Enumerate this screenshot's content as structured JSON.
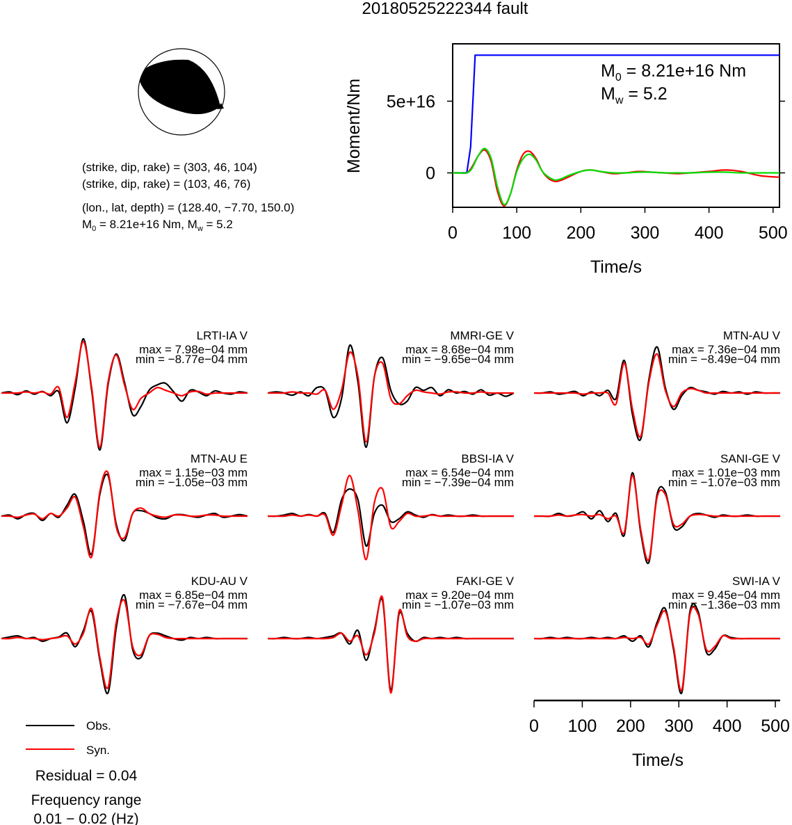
{
  "title": "20180525222344 fault",
  "mechanism": {
    "plane1": "(strike, dip, rake) = (303, 46, 104)",
    "plane2": "(strike, dip, rake) = (103, 46, 76)",
    "location": "(lon., lat, depth) = (128.40, −7.70, 150.0)",
    "moment_prefix": "M",
    "moment_sub": "0",
    "moment_value": " = 8.21e+16 Nm, M",
    "mw_sub": "w",
    "mw_value": " = 5.2"
  },
  "legend": {
    "obs": "Obs.",
    "syn": "Syn."
  },
  "residual": "Residual = 0.04",
  "frequency_label": "Frequency range",
  "frequency_value": "0.01 − 0.02 (Hz)",
  "chart_data": [
    {
      "type": "line",
      "name": "moment-rate",
      "xlabel": "Time/s",
      "ylabel": "Moment/Nm",
      "xlim": [
        0,
        510
      ],
      "ylim": [
        -2.4e+16,
        9e+16
      ],
      "x_ticks": [
        0,
        100,
        200,
        300,
        400,
        500
      ],
      "y_ticks": [
        {
          "v": 0,
          "label": "0"
        },
        {
          "v": 5e+16,
          "label": "5e+16"
        }
      ],
      "annotation": {
        "m0_pre": "M",
        "m0_sub": "0",
        "m0_val": " = 8.21e+16 Nm",
        "mw_pre": "M",
        "mw_sub": "w",
        "mw_val": " = 5.2"
      },
      "series": [
        {
          "color": "#0000ff",
          "x": [
            0,
            22,
            28,
            32,
            35,
            38,
            510
          ],
          "y": [
            0,
            0,
            1.8e+16,
            5.4e+16,
            8.21e+16,
            8.21e+16,
            8.21e+16
          ]
        },
        {
          "color": "#ff0000",
          "x": [
            0,
            10,
            22,
            30,
            40,
            50,
            60,
            70,
            80,
            90,
            100,
            110,
            120,
            130,
            140,
            150,
            160,
            170,
            180,
            200,
            215,
            230,
            250,
            270,
            290,
            310,
            330,
            350,
            370,
            400,
            425,
            450,
            480,
            510
          ],
          "y": [
            0,
            0,
            0,
            4000000000000000.0,
            1.2e+16,
            1.6e+16,
            8000000000000000.0,
            -1.3e+16,
            -2.3e+16,
            -1.5e+16,
            2000000000000000.0,
            1.3e+16,
            1.5e+16,
            1e+16,
            1000000000000000.0,
            -4000000000000000.0,
            -6000000000000000.0,
            -5000000000000000.0,
            -3000000000000000.0,
            1000000000000000.0,
            2000000000000000.0,
            1000000000000000.0,
            -500000000000000.0,
            0,
            1000000000000000.0,
            500000000000000.0,
            0,
            -500000000000000.0,
            0,
            1000000000000000.0,
            2000000000000000.0,
            1000000000000000.0,
            -2000000000000000.0,
            -3000000000000000.0
          ]
        },
        {
          "color": "#00dd00",
          "x": [
            0,
            10,
            22,
            30,
            40,
            50,
            60,
            70,
            80,
            90,
            100,
            110,
            120,
            130,
            140,
            150,
            160,
            170,
            180,
            200,
            215,
            230,
            250,
            270,
            290,
            310,
            330,
            350,
            370,
            400,
            425,
            450,
            480,
            510
          ],
          "y": [
            0,
            0,
            0,
            3000000000000000.0,
            1.2e+16,
            1.7e+16,
            1e+16,
            -1e+16,
            -2.2e+16,
            -1.5e+16,
            1000000000000000.0,
            1e+16,
            1.3e+16,
            9000000000000000.0,
            1000000000000000.0,
            -3000000000000000.0,
            -5000000000000000.0,
            -4000000000000000.0,
            -2000000000000000.0,
            1000000000000000.0,
            2000000000000000.0,
            1000000000000000.0,
            0,
            0,
            500000000000000.0,
            500000000000000.0,
            0,
            0,
            0,
            500000000000000.0,
            500000000000000.0,
            0,
            0,
            0
          ]
        }
      ]
    },
    {
      "type": "line",
      "name": "waveforms",
      "xlabel": "Time/s",
      "xlim": [
        0,
        510
      ],
      "x_ticks": [
        0,
        100,
        200,
        300,
        400,
        500
      ],
      "legend": [
        "Obs.",
        "Syn."
      ],
      "colors": {
        "obs": "#000000",
        "syn": "#ff0000"
      },
      "series": [
        {
          "station": "LRTI-IA V",
          "max": "max = 7.98e−04 mm",
          "min": "min = −8.77e−04 mm",
          "obs": [
            0,
            0.02,
            -0.03,
            0.04,
            -0.02,
            0.03,
            -0.05,
            0.02,
            -0.55,
            0.1,
            1.0,
            0.05,
            -1.05,
            0.15,
            0.72,
            0.2,
            -0.4,
            -0.25,
            0.05,
            0.15,
            0.18,
            0.02,
            -0.15,
            0.05,
            0.02,
            -0.05,
            0.04,
            0,
            -0.02,
            0.02,
            0
          ],
          "syn": [
            0,
            0,
            0,
            0.02,
            0,
            0.02,
            -0.02,
            0.1,
            -0.45,
            0.2,
            0.95,
            0.1,
            -1.0,
            0.2,
            0.7,
            0.15,
            -0.3,
            -0.1,
            0,
            0.1,
            0.05,
            0,
            -0.05,
            0.02,
            0.03,
            -0.02,
            0,
            0,
            0,
            0,
            0
          ]
        },
        {
          "station": "MMRI-GE V",
          "max": "max = 8.68e−04 mm",
          "min": "min = −9.65e−04 mm",
          "obs": [
            0,
            0.02,
            0,
            -0.04,
            0.02,
            -0.05,
            0.1,
            0.05,
            -0.45,
            -0.1,
            0.88,
            0.2,
            -1.0,
            0.3,
            0.65,
            0.05,
            -0.2,
            -0.15,
            0.1,
            0.05,
            0.1,
            -0.05,
            0.06,
            0,
            0.03,
            -0.02,
            0.06,
            -0.04,
            0,
            -0.06,
            0
          ],
          "syn": [
            0,
            0,
            0,
            0.02,
            0,
            0,
            -0.02,
            0.05,
            -0.3,
            0.05,
            0.75,
            0.3,
            -0.9,
            0.3,
            0.55,
            -0.1,
            -0.2,
            -0.05,
            0.05,
            0.02,
            0,
            -0.02,
            0.02,
            0.02,
            0,
            0,
            0.02,
            0,
            0,
            0,
            0
          ]
        },
        {
          "station": "MTN-AU V",
          "max": "max = 7.36e−04 mm",
          "min": "min = −8.49e−04 mm",
          "obs": [
            0,
            0,
            0.02,
            -0.02,
            0,
            0.03,
            -0.05,
            0.02,
            -0.05,
            0.05,
            -0.1,
            0.6,
            -0.4,
            -0.85,
            0.25,
            0.85,
            0.1,
            -0.3,
            -0.05,
            0.1,
            0.05,
            0.02,
            -0.02,
            0.03,
            0,
            0.02,
            -0.02,
            0.02,
            0,
            0,
            0
          ],
          "syn": [
            0,
            0,
            0,
            0,
            0,
            0,
            -0.02,
            0,
            0,
            0,
            -0.2,
            0.55,
            -0.3,
            -0.8,
            0.2,
            0.72,
            0.05,
            -0.25,
            0,
            0.08,
            0.05,
            0,
            0,
            0,
            0,
            0,
            0,
            0,
            0,
            0,
            0
          ]
        },
        {
          "station": "MTN-AU E",
          "max": "max = 1.15e−03 mm",
          "min": "min = −1.05e−03 mm",
          "obs": [
            0,
            0.02,
            -0.05,
            0.03,
            0.05,
            -0.08,
            0.05,
            -0.02,
            0.2,
            0.4,
            -0.1,
            -0.7,
            0.4,
            0.75,
            -0.15,
            -0.45,
            0.05,
            0.1,
            0.05,
            -0.03,
            -0.05,
            0.02,
            0.03,
            0,
            -0.02,
            0.02,
            0.05,
            -0.02,
            0,
            0.03,
            0
          ],
          "syn": [
            0,
            0,
            -0.02,
            0.02,
            0.04,
            -0.05,
            0.05,
            0,
            0.15,
            0.35,
            -0.2,
            -0.75,
            0.45,
            0.8,
            -0.2,
            -0.4,
            0.05,
            0.15,
            0.05,
            0,
            -0.02,
            0.02,
            0.02,
            0,
            0,
            0.02,
            0.02,
            0,
            0,
            0,
            0
          ]
        },
        {
          "station": "BBSI-IA V",
          "max": "max = 6.54e−04 mm",
          "min": "min = −7.39e−04 mm",
          "obs": [
            0,
            0,
            0.02,
            0.05,
            0,
            0.03,
            0,
            0.05,
            -0.3,
            0.3,
            0.5,
            0.3,
            -0.55,
            0.05,
            0.2,
            -0.1,
            -0.05,
            0.08,
            0.02,
            -0.02,
            0.03,
            0,
            0.02,
            0,
            0,
            0.02,
            0,
            0,
            0,
            0,
            0
          ],
          "syn": [
            0,
            0,
            0,
            0.02,
            0,
            0.02,
            0,
            0.02,
            -0.35,
            0.2,
            0.75,
            0.1,
            -0.8,
            0.25,
            0.5,
            -0.2,
            -0.1,
            0.05,
            0,
            0,
            0.02,
            0,
            0,
            0,
            0,
            0,
            0,
            0,
            0,
            0,
            0
          ]
        },
        {
          "station": "SANI-GE V",
          "max": "max = 1.01e−03 mm",
          "min": "min = −1.07e−03 mm",
          "obs": [
            0,
            0,
            0,
            0.05,
            0,
            0.02,
            0.08,
            -0.05,
            0.1,
            -0.1,
            0.05,
            -0.35,
            0.8,
            -0.3,
            -0.85,
            0.4,
            0.45,
            -0.2,
            -0.2,
            0,
            0.05,
            0.02,
            -0.02,
            0.02,
            0,
            0,
            0.02,
            0,
            0,
            0,
            0
          ],
          "syn": [
            0,
            0,
            0,
            0.02,
            0,
            0.02,
            0.03,
            0,
            0.03,
            -0.05,
            0,
            -0.3,
            0.75,
            -0.25,
            -0.8,
            0.35,
            0.4,
            -0.15,
            -0.15,
            0,
            0.03,
            0.02,
            0,
            0,
            0,
            0,
            0,
            0,
            0,
            0,
            0
          ]
        },
        {
          "station": "KDU-AU V",
          "max": "max = 6.85e−04 mm",
          "min": "min = −7.67e−04 mm",
          "obs": [
            0,
            0.03,
            0.05,
            0,
            0.02,
            -0.05,
            0,
            0.03,
            0.1,
            -0.15,
            0.15,
            0.5,
            -0.4,
            -1.0,
            0.2,
            0.8,
            -0.2,
            -0.35,
            0.05,
            0.1,
            0.05,
            0,
            -0.03,
            0.02,
            0,
            0.02,
            0,
            0,
            0,
            0,
            0
          ],
          "syn": [
            0,
            0,
            0.02,
            0,
            0,
            -0.02,
            0,
            0.02,
            0.05,
            -0.1,
            0.1,
            0.55,
            -0.35,
            -0.9,
            0.3,
            0.7,
            -0.15,
            -0.3,
            0.05,
            0.08,
            0.02,
            0,
            0,
            0,
            0,
            0,
            0,
            0,
            0,
            0,
            0
          ]
        },
        {
          "station": "FAKI-GE V",
          "max": "max = 9.20e−04 mm",
          "min": "min = −1.07e−03 mm",
          "obs": [
            0,
            0,
            0.02,
            0,
            0,
            0.02,
            0,
            0.02,
            0.05,
            0.1,
            -0.1,
            0.15,
            -0.4,
            0.15,
            0.7,
            -0.95,
            0.45,
            0.1,
            -0.05,
            0.02,
            0,
            0.02,
            0,
            0.02,
            0,
            0,
            0,
            0,
            0,
            0,
            0
          ],
          "syn": [
            0,
            0,
            0,
            0,
            0,
            0,
            0,
            0,
            0.02,
            0.1,
            -0.05,
            0.05,
            -0.3,
            0.1,
            0.75,
            -1.0,
            0.5,
            0.05,
            -0.05,
            0,
            0,
            0,
            0,
            0,
            0,
            0,
            0,
            0,
            0,
            0,
            0
          ]
        },
        {
          "station": "SWI-IA V",
          "max": "max = 9.45e−04 mm",
          "min": "min = −1.36e−03 mm",
          "obs": [
            0,
            0,
            0.02,
            0,
            0.02,
            0,
            0,
            0.02,
            0,
            0.02,
            0,
            0.05,
            -0.05,
            0.05,
            -0.15,
            0.3,
            0.55,
            -0.2,
            -1.0,
            0.5,
            0.5,
            -0.25,
            -0.2,
            0.05,
            0.02,
            0,
            0,
            0,
            0,
            0,
            0
          ],
          "syn": [
            0,
            0,
            0,
            0,
            0,
            0,
            0,
            0,
            0,
            0,
            0,
            0.02,
            0,
            0.02,
            -0.1,
            0.25,
            0.5,
            -0.15,
            -0.95,
            0.45,
            0.45,
            -0.2,
            -0.15,
            0.05,
            0,
            0,
            0,
            0,
            0,
            0,
            0
          ]
        }
      ]
    }
  ]
}
